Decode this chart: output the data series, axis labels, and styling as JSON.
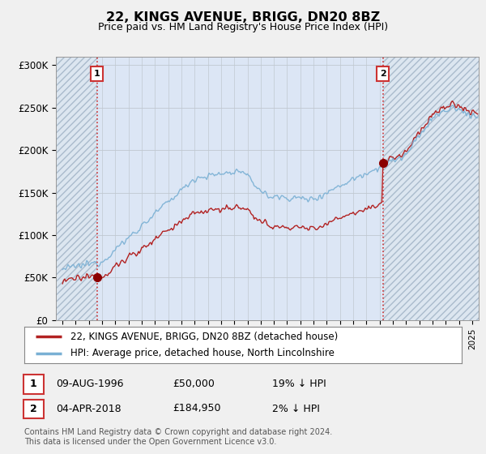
{
  "title": "22, KINGS AVENUE, BRIGG, DN20 8BZ",
  "subtitle": "Price paid vs. HM Land Registry's House Price Index (HPI)",
  "ylim": [
    0,
    310000
  ],
  "yticks": [
    0,
    50000,
    100000,
    150000,
    200000,
    250000,
    300000
  ],
  "ytick_labels": [
    "£0",
    "£50K",
    "£100K",
    "£150K",
    "£200K",
    "£250K",
    "£300K"
  ],
  "sale1_year": 1996.6,
  "sale1_price": 50000,
  "sale1_label": "1",
  "sale2_year": 2018.25,
  "sale2_price": 184950,
  "sale2_label": "2",
  "line_color_property": "#b22222",
  "line_color_hpi": "#7ab0d4",
  "dot_color": "#8b0000",
  "dashed_color": "#cc3333",
  "hatch_facecolor": "#dce6f0",
  "legend_label1": "22, KINGS AVENUE, BRIGG, DN20 8BZ (detached house)",
  "legend_label2": "HPI: Average price, detached house, North Lincolnshire",
  "table_date1": "09-AUG-1996",
  "table_price1": "£50,000",
  "table_pct1": "19% ↓ HPI",
  "table_date2": "04-APR-2018",
  "table_price2": "£184,950",
  "table_pct2": "2% ↓ HPI",
  "footer": "Contains HM Land Registry data © Crown copyright and database right 2024.\nThis data is licensed under the Open Government Licence v3.0.",
  "xmin": 1993.5,
  "xmax": 2025.5,
  "background_color": "#f0f0f0",
  "plot_bg": "#e8eef5"
}
